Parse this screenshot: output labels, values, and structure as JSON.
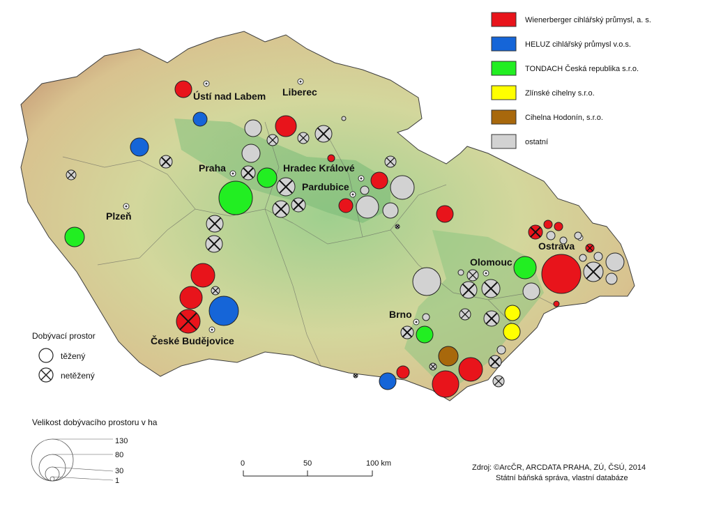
{
  "legend_companies": [
    {
      "label": "Wienerberger cihlářský průmysl, a. s.",
      "color": "#e8141b"
    },
    {
      "label": "HELUZ cihlářský průmysl v.o.s.",
      "color": "#1565d8"
    },
    {
      "label": "TONDACH Česká republika s.r.o.",
      "color": "#22ee22"
    },
    {
      "label": "Zlínské cihelny s.r.o.",
      "color": "#ffff00"
    },
    {
      "label": "Cihelna Hodonín, s.r.o.",
      "color": "#a8680c"
    },
    {
      "label": "ostatní",
      "color": "#d2d2d2"
    }
  ],
  "cities": [
    {
      "name": "Ústí nad Labem"
    },
    {
      "name": "Liberec"
    },
    {
      "name": "Praha"
    },
    {
      "name": "Hradec Králové"
    },
    {
      "name": "Pardubice"
    },
    {
      "name": "Plzeň"
    },
    {
      "name": "Olomouc"
    },
    {
      "name": "Ostrava"
    },
    {
      "name": "Brno"
    },
    {
      "name": "České Budějovice"
    }
  ],
  "space_legend": {
    "title": "Dobývací prostor",
    "mined": "těžený",
    "not_mined": "netěžený"
  },
  "size_legend": {
    "title": "Velikost dobývacího prostoru v ha",
    "values": [
      "130",
      "80",
      "30",
      "1"
    ]
  },
  "scale": {
    "ticks": [
      "0",
      "50",
      "100 km"
    ]
  },
  "source": {
    "line1": "Zdroj: ©ArcČR, ARCDATA PRAHA, ZÚ, ČSÚ, 2014",
    "line2": "Státní báňská správa, vlastní databáze"
  }
}
